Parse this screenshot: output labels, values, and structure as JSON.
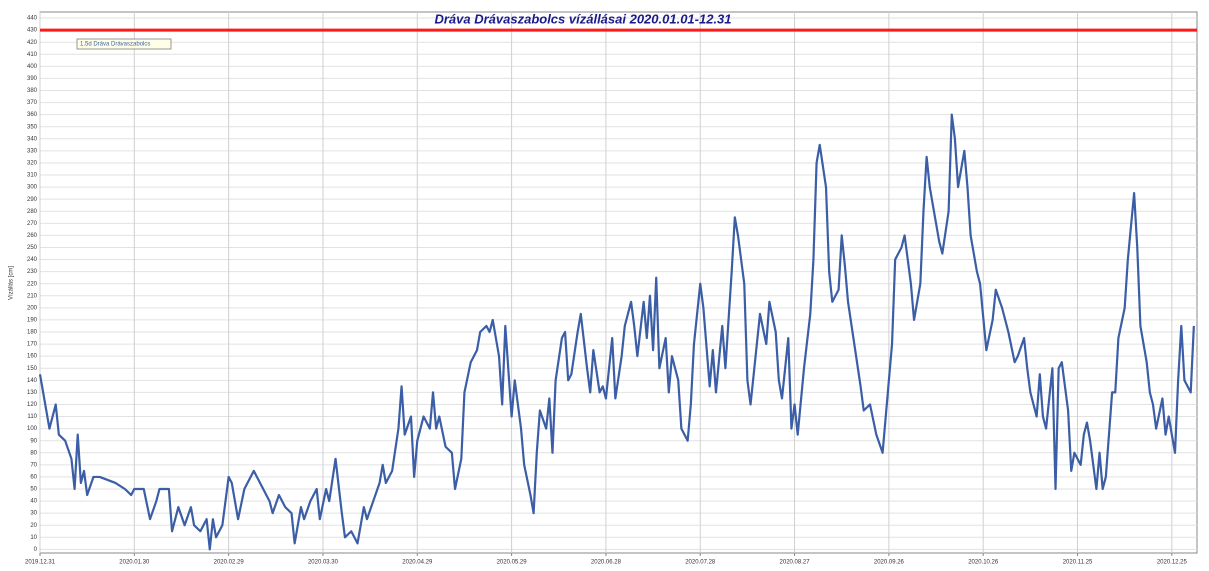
{
  "chart_data": {
    "type": "line",
    "title": "Dráva Drávaszabolcs vízállásai 2020.01.01-12.31",
    "ylabel": "Vízállás [cm]",
    "xlim": [
      0,
      368
    ],
    "ylim": [
      -3,
      445
    ],
    "grid": true,
    "legend": "top-left",
    "xticks": [
      {
        "value": 0,
        "label": "2019.12.31"
      },
      {
        "value": 30,
        "label": "2020.01.30"
      },
      {
        "value": 60,
        "label": "2020.02.29"
      },
      {
        "value": 90,
        "label": "2020.03.30"
      },
      {
        "value": 120,
        "label": "2020.04.29"
      },
      {
        "value": 150,
        "label": "2020.05.29"
      },
      {
        "value": 180,
        "label": "2020.06.28"
      },
      {
        "value": 210,
        "label": "2020.07.28"
      },
      {
        "value": 240,
        "label": "2020.08.27"
      },
      {
        "value": 270,
        "label": "2020.09.26"
      },
      {
        "value": 300,
        "label": "2020.10.26"
      },
      {
        "value": 330,
        "label": "2020.11.25"
      },
      {
        "value": 360,
        "label": "2020.12.25"
      }
    ],
    "yticks": [
      0,
      10,
      20,
      30,
      40,
      50,
      60,
      70,
      80,
      90,
      100,
      110,
      120,
      130,
      140,
      150,
      160,
      170,
      180,
      190,
      200,
      210,
      220,
      230,
      240,
      250,
      260,
      270,
      280,
      290,
      300,
      310,
      320,
      330,
      340,
      350,
      360,
      370,
      380,
      390,
      400,
      410,
      420,
      430,
      440
    ],
    "series": [
      {
        "name": "1.5d Dráva Drávaszabolcs",
        "color": "#3b5ea6",
        "x": [
          0,
          3,
          5,
          6,
          8,
          10,
          11,
          12,
          13,
          14,
          15,
          17,
          19,
          24,
          27,
          29,
          30,
          33,
          35,
          37,
          38,
          41,
          42,
          44,
          46,
          48,
          49,
          51,
          53,
          54,
          55,
          56,
          58,
          60,
          61,
          63,
          65,
          68,
          70,
          73,
          74,
          76,
          78,
          80,
          81,
          83,
          84,
          86,
          88,
          89,
          91,
          92,
          94,
          96,
          97,
          99,
          101,
          103,
          104,
          106,
          108,
          109,
          110,
          112,
          114,
          115,
          116,
          118,
          119,
          120,
          122,
          124,
          125,
          126,
          127,
          129,
          131,
          132,
          134,
          135,
          137,
          139,
          140,
          142,
          143,
          144,
          146,
          147,
          148,
          150,
          151,
          153,
          154,
          156,
          157,
          158,
          159,
          161,
          162,
          163,
          164,
          166,
          167,
          168,
          169,
          171,
          172,
          174,
          175,
          176,
          178,
          179,
          180,
          182,
          183,
          185,
          186,
          188,
          189,
          190,
          192,
          193,
          194,
          195,
          196,
          197,
          199,
          200,
          201,
          203,
          204,
          206,
          207,
          208,
          210,
          211,
          213,
          214,
          215,
          217,
          218,
          220,
          221,
          222,
          224,
          225,
          226,
          228,
          229,
          231,
          232,
          234,
          235,
          236,
          238,
          239,
          240,
          241,
          243,
          245,
          246,
          247,
          248,
          250,
          251,
          252,
          254,
          255,
          256,
          257,
          259,
          261,
          262,
          264,
          266,
          268,
          269,
          271,
          272,
          274,
          275,
          277,
          278,
          280,
          281,
          282,
          283,
          285,
          286,
          287,
          289,
          290,
          291,
          292,
          294,
          295,
          296,
          298,
          299,
          301,
          303,
          304,
          306,
          308,
          310,
          311,
          313,
          314,
          315,
          317,
          318,
          319,
          320,
          322,
          323,
          324,
          325,
          327,
          328,
          329,
          331,
          332,
          333,
          334,
          336,
          337,
          338,
          339,
          341,
          342,
          343,
          345,
          346,
          348,
          349,
          350,
          352,
          353,
          354,
          355,
          357,
          358,
          359,
          361,
          362,
          363,
          364,
          366,
          367
        ],
        "values": [
          145,
          100,
          120,
          95,
          90,
          75,
          50,
          95,
          55,
          65,
          45,
          60,
          60,
          55,
          50,
          45,
          50,
          50,
          25,
          40,
          50,
          50,
          15,
          35,
          20,
          35,
          20,
          15,
          25,
          0,
          25,
          10,
          20,
          60,
          55,
          25,
          50,
          65,
          55,
          40,
          30,
          45,
          35,
          30,
          5,
          35,
          25,
          40,
          50,
          25,
          50,
          40,
          75,
          30,
          10,
          15,
          5,
          35,
          25,
          40,
          55,
          70,
          55,
          65,
          100,
          135,
          95,
          110,
          60,
          90,
          110,
          100,
          130,
          100,
          110,
          85,
          80,
          50,
          75,
          130,
          155,
          165,
          180,
          185,
          180,
          190,
          160,
          120,
          185,
          110,
          140,
          100,
          70,
          45,
          30,
          80,
          115,
          100,
          125,
          80,
          140,
          175,
          180,
          140,
          145,
          180,
          195,
          150,
          130,
          165,
          130,
          135,
          125,
          175,
          125,
          160,
          185,
          205,
          185,
          160,
          205,
          175,
          210,
          165,
          225,
          150,
          175,
          130,
          160,
          140,
          100,
          90,
          120,
          170,
          220,
          200,
          135,
          165,
          130,
          185,
          150,
          230,
          275,
          260,
          220,
          140,
          120,
          170,
          195,
          170,
          205,
          180,
          140,
          125,
          175,
          100,
          120,
          95,
          150,
          195,
          240,
          320,
          335,
          300,
          230,
          205,
          215,
          260,
          235,
          205,
          170,
          135,
          115,
          120,
          95,
          80,
          110,
          170,
          240,
          250,
          260,
          220,
          190,
          220,
          280,
          325,
          300,
          270,
          255,
          245,
          280,
          360,
          340,
          300,
          330,
          300,
          260,
          230,
          220,
          165,
          190,
          215,
          200,
          180,
          155,
          160,
          175,
          150,
          130,
          110,
          145,
          110,
          100,
          150,
          50,
          150,
          155,
          115,
          65,
          80,
          70,
          95,
          105,
          90,
          50,
          80,
          50,
          60,
          130,
          130,
          175,
          200,
          240,
          295,
          250,
          185,
          155,
          130,
          120,
          100,
          125,
          95,
          110,
          80,
          140,
          185,
          140,
          130,
          185
        ]
      },
      {
        "color": "#ff1a1a",
        "x": [
          0,
          368
        ],
        "values": [
          430,
          430
        ]
      }
    ]
  }
}
